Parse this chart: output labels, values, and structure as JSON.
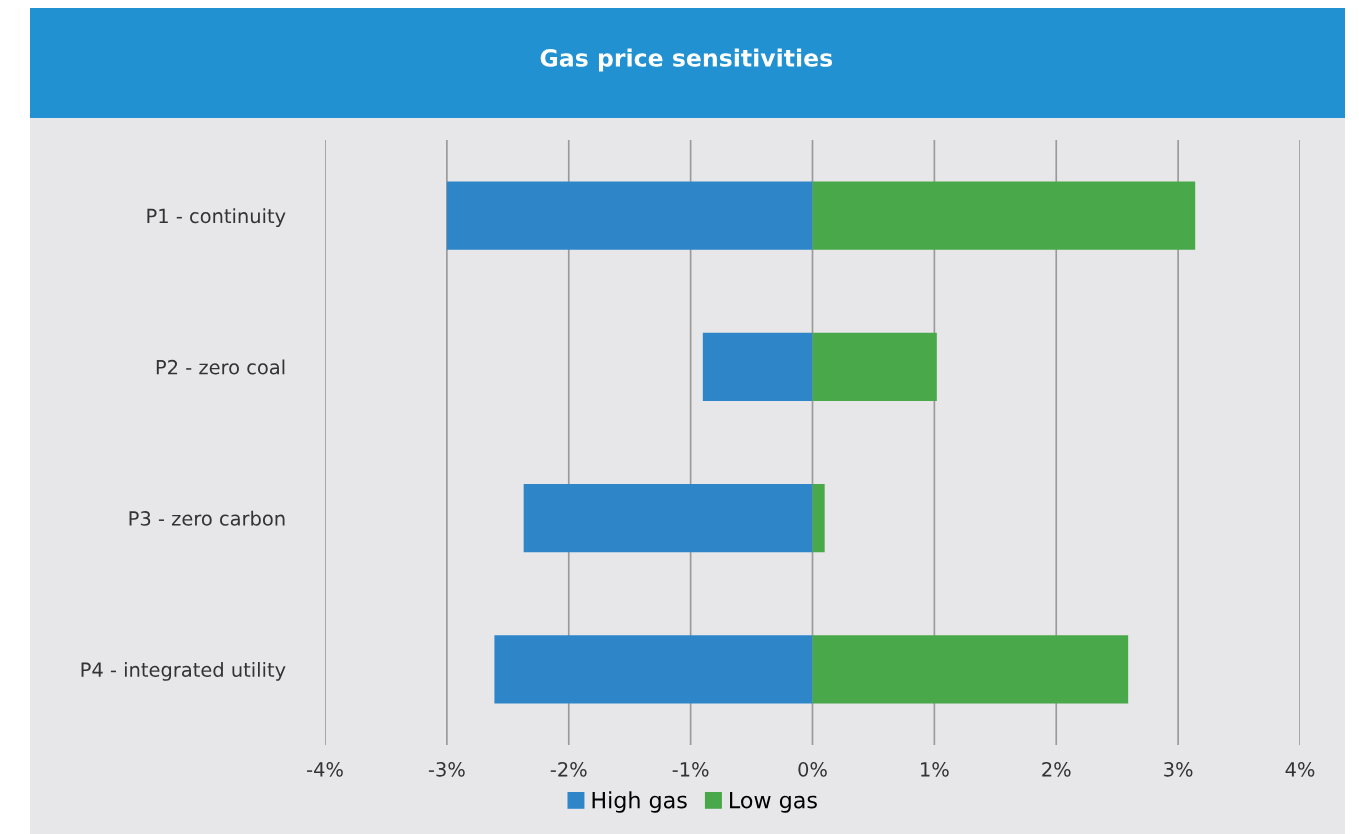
{
  "chart_data": {
    "type": "bar",
    "title": "Gas price sensitivities",
    "orientation": "horizontal",
    "stacked": true,
    "categories": [
      "P1 - continuity",
      "P2 - zero coal",
      "P3 - zero carbon",
      "P4 - integrated utility"
    ],
    "series": [
      {
        "name": "High gas",
        "color": "#2e86c8",
        "values": [
          -3.0,
          -0.9,
          -2.37,
          -2.61
        ]
      },
      {
        "name": "Low gas",
        "color": "#48a84a",
        "values": [
          3.14,
          1.02,
          0.1,
          2.59
        ]
      }
    ],
    "xlim": [
      -4,
      4
    ],
    "xticks": [
      {
        "value": -4,
        "label": "-4%"
      },
      {
        "value": -3,
        "label": "-3%"
      },
      {
        "value": -2,
        "label": "-2%"
      },
      {
        "value": -1,
        "label": "-1%"
      },
      {
        "value": 0,
        "label": "0%"
      },
      {
        "value": 1,
        "label": "1%"
      },
      {
        "value": 2,
        "label": "2%"
      },
      {
        "value": 3,
        "label": "3%"
      },
      {
        "value": 4,
        "label": "4%"
      }
    ],
    "grid": "x",
    "legend": "bottom"
  }
}
